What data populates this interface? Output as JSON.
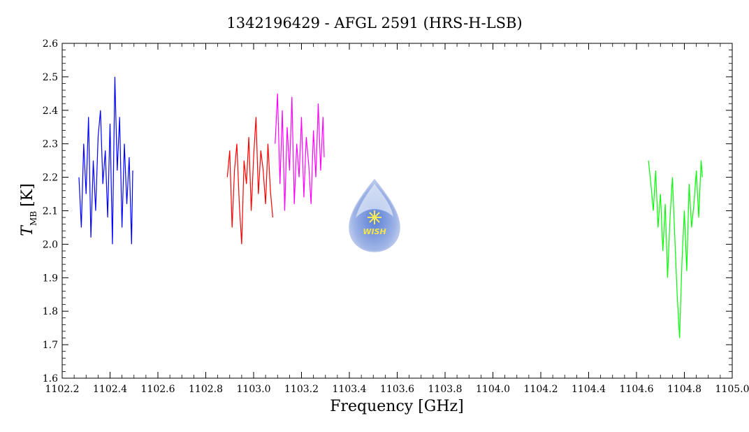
{
  "chart_data": {
    "type": "line",
    "title": "1342196429 - AFGL 2591 (HRS-H-LSB)",
    "xlabel": "Frequency [GHz]",
    "ylabel_main": "T",
    "ylabel_sub": "MB",
    "ylabel_unit": "[K]",
    "xlim": [
      1102.2,
      1105.0
    ],
    "ylim": [
      1.6,
      2.6
    ],
    "x_ticks": [
      "1102.2",
      "1102.4",
      "1102.6",
      "1102.8",
      "1103.0",
      "1103.2",
      "1103.4",
      "1103.6",
      "1103.8",
      "1104.0",
      "1104.2",
      "1104.4",
      "1104.6",
      "1104.8",
      "1105.0"
    ],
    "y_ticks": [
      "1.6",
      "1.7",
      "1.8",
      "1.9",
      "2.0",
      "2.1",
      "2.2",
      "2.3",
      "2.4",
      "2.5",
      "2.6"
    ],
    "grid": false,
    "series": [
      {
        "color": "#0000ff",
        "x": [
          1102.27,
          1102.28,
          1102.29,
          1102.3,
          1102.31,
          1102.32,
          1102.33,
          1102.34,
          1102.35,
          1102.36,
          1102.37,
          1102.38,
          1102.39,
          1102.4,
          1102.41,
          1102.42,
          1102.43,
          1102.44,
          1102.45,
          1102.46,
          1102.47,
          1102.48,
          1102.49,
          1102.495
        ],
        "y": [
          2.2,
          2.05,
          2.3,
          2.15,
          2.38,
          2.02,
          2.25,
          2.1,
          2.32,
          2.4,
          2.18,
          2.28,
          2.08,
          2.36,
          2.0,
          2.5,
          2.22,
          2.38,
          2.05,
          2.3,
          2.12,
          2.26,
          2.0,
          2.22
        ]
      },
      {
        "color": "#ff0000",
        "x": [
          1102.89,
          1102.9,
          1102.91,
          1102.92,
          1102.93,
          1102.94,
          1102.95,
          1102.96,
          1102.97,
          1102.98,
          1102.99,
          1103.0,
          1103.01,
          1103.02,
          1103.03,
          1103.04,
          1103.05,
          1103.06,
          1103.07,
          1103.08
        ],
        "y": [
          2.2,
          2.28,
          2.05,
          2.22,
          2.3,
          2.12,
          2.0,
          2.25,
          2.18,
          2.32,
          2.1,
          2.26,
          2.38,
          2.15,
          2.28,
          2.22,
          2.12,
          2.3,
          2.16,
          2.08
        ]
      },
      {
        "color": "#ff00ff",
        "x": [
          1103.09,
          1103.1,
          1103.11,
          1103.12,
          1103.13,
          1103.14,
          1103.15,
          1103.16,
          1103.17,
          1103.18,
          1103.19,
          1103.2,
          1103.21,
          1103.22,
          1103.23,
          1103.24,
          1103.25,
          1103.26,
          1103.27,
          1103.28,
          1103.29,
          1103.295
        ],
        "y": [
          2.3,
          2.45,
          2.18,
          2.4,
          2.1,
          2.35,
          2.22,
          2.44,
          2.12,
          2.3,
          2.2,
          2.38,
          2.14,
          2.32,
          2.24,
          2.12,
          2.34,
          2.2,
          2.42,
          2.22,
          2.38,
          2.26
        ]
      },
      {
        "color": "#00ff00",
        "x": [
          1104.65,
          1104.66,
          1104.67,
          1104.68,
          1104.69,
          1104.7,
          1104.71,
          1104.72,
          1104.73,
          1104.74,
          1104.75,
          1104.76,
          1104.77,
          1104.78,
          1104.79,
          1104.8,
          1104.81,
          1104.82,
          1104.83,
          1104.84,
          1104.85,
          1104.86,
          1104.87,
          1104.875
        ],
        "y": [
          2.25,
          2.18,
          2.1,
          2.22,
          2.05,
          2.15,
          1.98,
          2.12,
          1.9,
          2.08,
          2.2,
          2.02,
          1.85,
          1.72,
          1.95,
          2.1,
          1.92,
          2.18,
          2.05,
          2.12,
          2.22,
          2.08,
          2.25,
          2.2
        ]
      }
    ],
    "watermark": "WISH"
  }
}
